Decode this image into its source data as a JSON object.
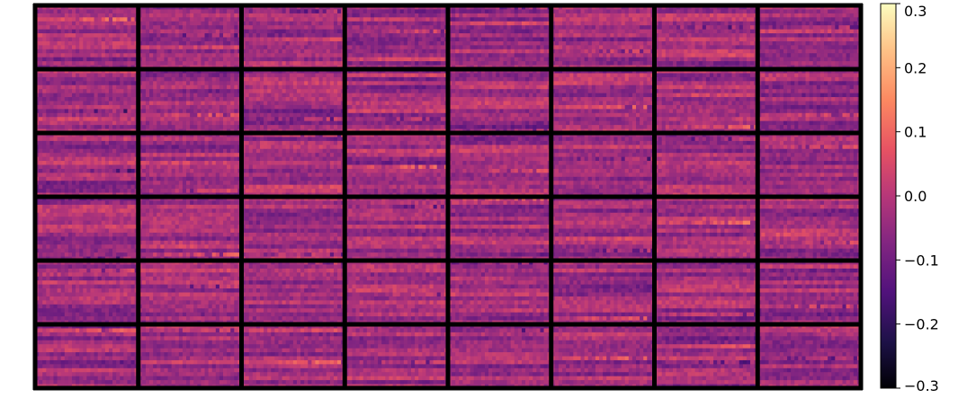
{
  "chart_data": {
    "type": "heatmap",
    "title": "",
    "xlabel": "",
    "ylabel": "",
    "grid": {
      "rows": 6,
      "cols": 8,
      "cell_rows": 16,
      "cell_cols": 28
    },
    "value_range": [
      -0.3,
      0.3
    ],
    "colormap": "magma",
    "colorbar": {
      "position": "right",
      "ticks": [
        0.3,
        0.2,
        0.1,
        0.0,
        -0.1,
        -0.2,
        -0.3
      ],
      "tick_labels": [
        "0.3",
        "0.2",
        "0.1",
        "0.0",
        "−0.1",
        "−0.2",
        "−0.3"
      ]
    },
    "colors": {
      "cell_border": "#000000",
      "background": "#ffffff"
    }
  }
}
